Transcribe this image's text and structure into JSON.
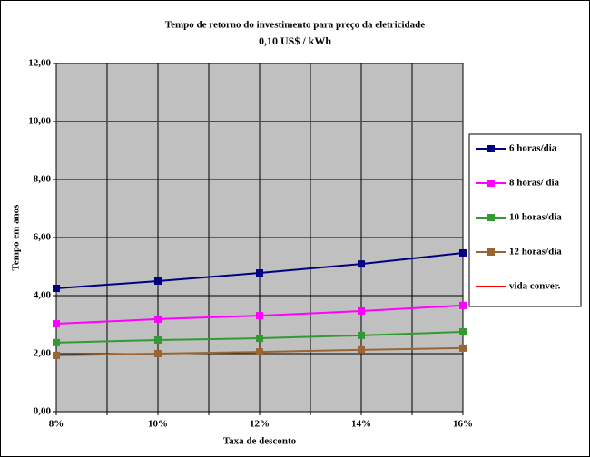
{
  "chart_data": {
    "type": "line",
    "title": "Tempo de retorno do investimento para preço da eletricidade",
    "subtitle": "0,10 US$ / kWh",
    "xlabel": "Taxa de desconto",
    "ylabel": "Tempo em anos",
    "x": [
      8,
      10,
      12,
      14,
      16
    ],
    "xlim": [
      8,
      16
    ],
    "xticks": [
      {
        "value": 8,
        "label": "8%"
      },
      {
        "value": 10,
        "label": "10%"
      },
      {
        "value": 12,
        "label": "12%"
      },
      {
        "value": 14,
        "label": "14%"
      },
      {
        "value": 16,
        "label": "16%"
      }
    ],
    "xminorticks": [
      9,
      11,
      13,
      15
    ],
    "ylim": [
      0,
      12
    ],
    "yticks": [
      {
        "value": 0,
        "label": "0,00"
      },
      {
        "value": 2,
        "label": "2,00"
      },
      {
        "value": 4,
        "label": "4,00"
      },
      {
        "value": 6,
        "label": "6,00"
      },
      {
        "value": 8,
        "label": "8,00"
      },
      {
        "value": 10,
        "label": "10,00"
      },
      {
        "value": 12,
        "label": "12,00"
      }
    ],
    "grid": true,
    "legend": "right",
    "series": [
      {
        "name": "6 horas/dia",
        "color": "#000080",
        "markers": true,
        "values": [
          4.25,
          4.5,
          4.78,
          5.09,
          5.47
        ]
      },
      {
        "name": "8 horas/ dia",
        "color": "#ff00ff",
        "markers": true,
        "values": [
          3.03,
          3.19,
          3.31,
          3.47,
          3.66
        ]
      },
      {
        "name": "10 horas/dia",
        "color": "#339933",
        "markers": true,
        "values": [
          2.38,
          2.47,
          2.53,
          2.63,
          2.75
        ]
      },
      {
        "name": "12 horas/dia",
        "color": "#996633",
        "markers": true,
        "values": [
          1.94,
          2.0,
          2.06,
          2.13,
          2.19
        ]
      },
      {
        "name": "vida conver.",
        "color": "#ff0000",
        "markers": false,
        "values": [
          10,
          10,
          10,
          10,
          10
        ]
      }
    ]
  }
}
